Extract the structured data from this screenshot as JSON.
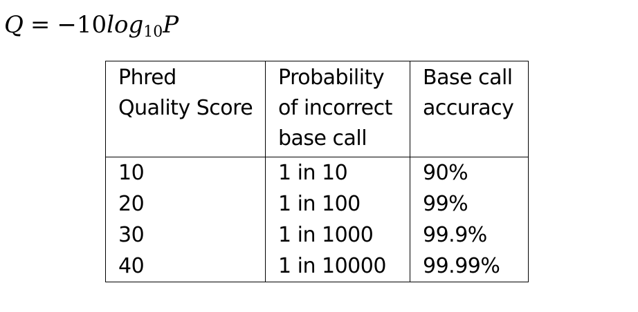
{
  "formula": {
    "lhs": "Q",
    "equals": "=",
    "coefficient": "−10",
    "func": "log",
    "base": "10",
    "variable": "P"
  },
  "table": {
    "headers": [
      [
        "Phred",
        "Quality Score"
      ],
      [
        "Probability",
        "of incorrect",
        "base call"
      ],
      [
        "Base call",
        "accuracy"
      ]
    ],
    "rows": [
      [
        "10",
        "1 in 10",
        "90%"
      ],
      [
        "20",
        "1 in 100",
        "99%"
      ],
      [
        "30",
        "1 in 1000",
        "99.9%"
      ],
      [
        "40",
        "1 in 10000",
        "99.99%"
      ]
    ]
  }
}
